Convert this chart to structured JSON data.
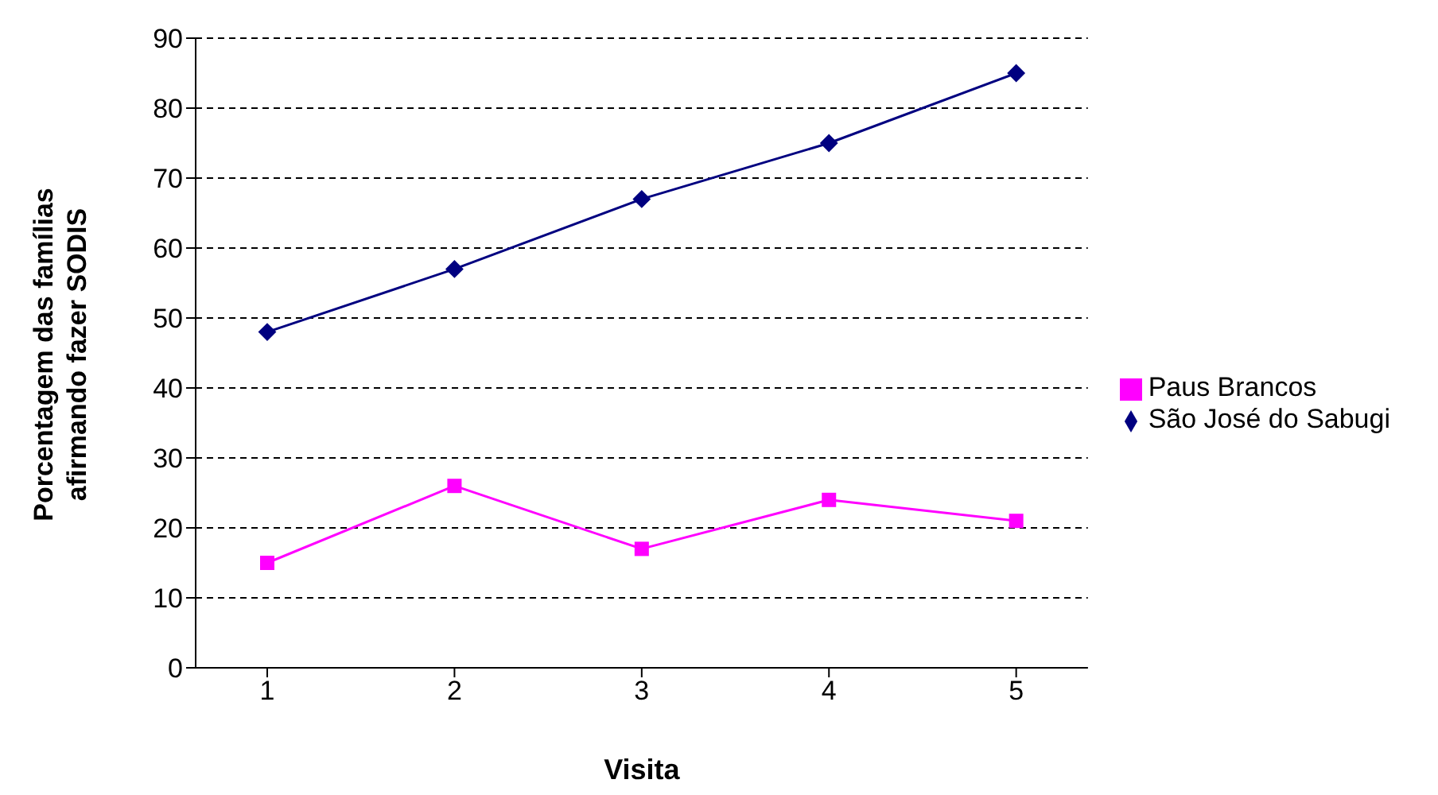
{
  "chart_data": {
    "type": "line",
    "xlabel": "Visita",
    "ylabel": "Porcentagem das famílias afirmando fazer SODIS",
    "categories": [
      "1",
      "2",
      "3",
      "4",
      "5"
    ],
    "series": [
      {
        "name": "São José do Sabugi",
        "color": "#000080",
        "marker": "diamond",
        "values": [
          48,
          57,
          67,
          75,
          85
        ]
      },
      {
        "name": "Paus Brancos",
        "color": "#ff00ff",
        "marker": "square",
        "values": [
          15,
          26,
          17,
          24,
          21
        ]
      }
    ],
    "ylim": [
      0,
      90
    ],
    "yticks": [
      0,
      10,
      20,
      30,
      40,
      50,
      60,
      70,
      80,
      90
    ],
    "grid": "y",
    "legend": "right"
  }
}
